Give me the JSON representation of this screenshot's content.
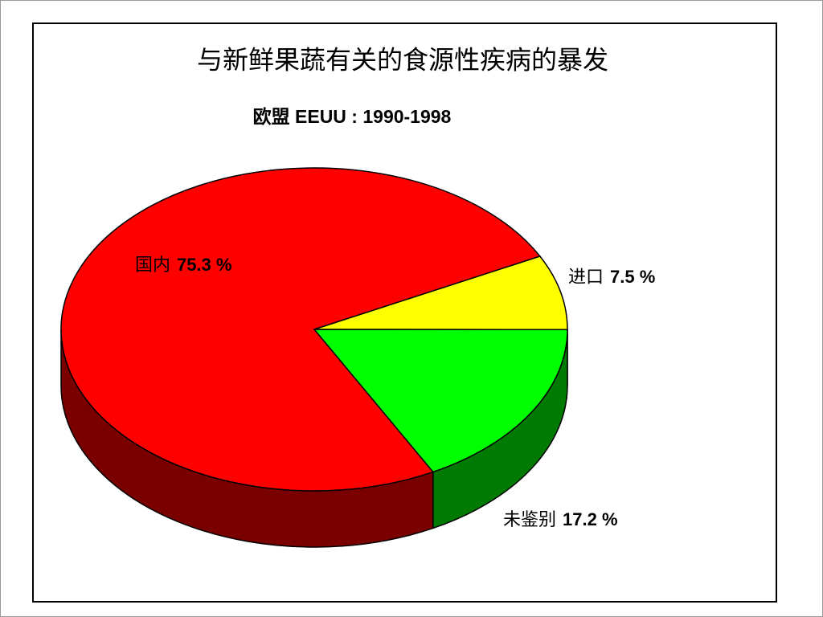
{
  "chart_data": {
    "type": "pie",
    "title": "与新鲜果蔬有关的食源性疾病的暴发",
    "subtitle": "欧盟 EEUU : 1990-1998",
    "categories": [
      "国内",
      "进口",
      "未鉴别"
    ],
    "values": [
      75.3,
      7.5,
      17.2
    ],
    "value_labels": [
      "75.3 %",
      "7.5 %",
      "17.2 %"
    ],
    "colors": [
      "#ff0000",
      "#ffff00",
      "#00ff00"
    ]
  }
}
